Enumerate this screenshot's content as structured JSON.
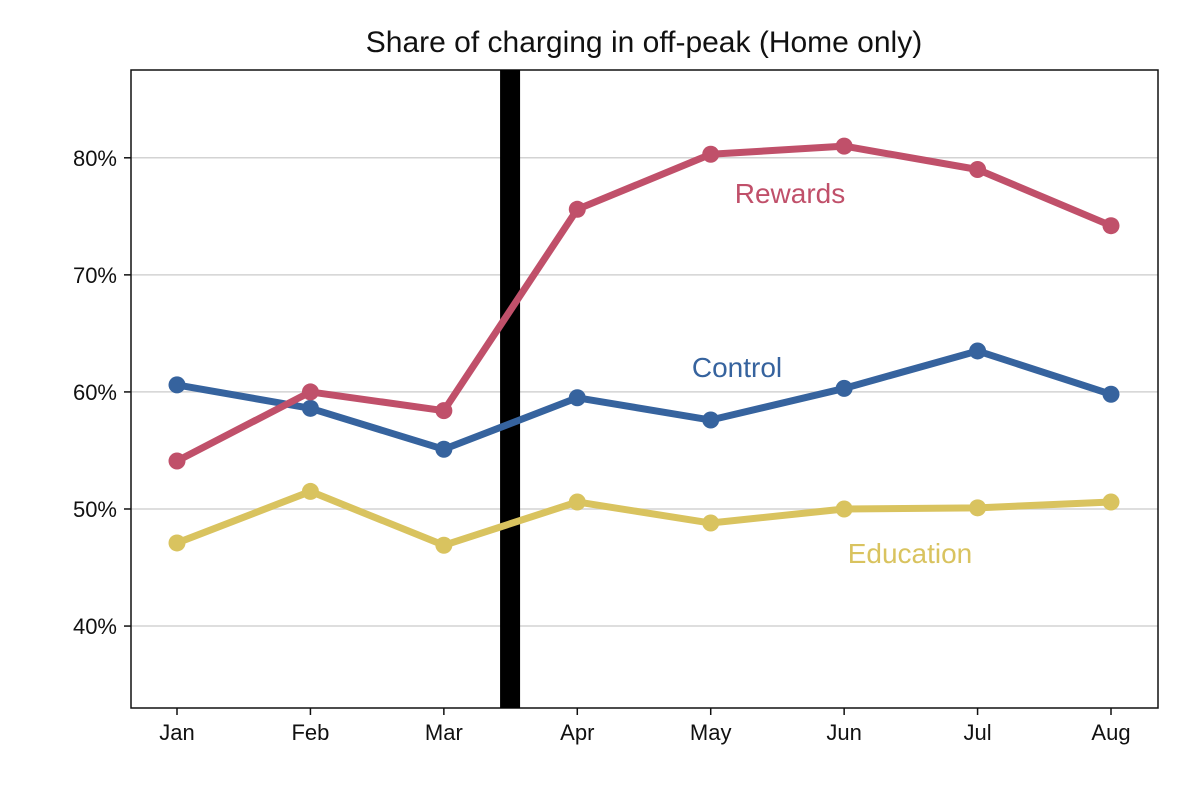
{
  "chart_data": {
    "type": "line",
    "title": "Share of charging in off-peak (Home only)",
    "xlabel": "",
    "ylabel": "",
    "categories": [
      "Jan",
      "Feb",
      "Mar",
      "Apr",
      "May",
      "Jun",
      "Jul",
      "Aug"
    ],
    "ylim": [
      0.33,
      0.875
    ],
    "yticks": [
      0.4,
      0.5,
      0.6,
      0.7,
      0.8
    ],
    "ytick_labels": [
      "40%",
      "50%",
      "60%",
      "70%",
      "80%"
    ],
    "grid": true,
    "legend": "inline labels",
    "event_marker": {
      "between": [
        "Mar",
        "Apr"
      ],
      "color": "#000000"
    },
    "series": [
      {
        "name": "Rewards",
        "color": "#c0506a",
        "values": [
          0.541,
          0.6,
          0.584,
          0.756,
          0.803,
          0.81,
          0.79,
          0.742
        ]
      },
      {
        "name": "Control",
        "color": "#36639e",
        "values": [
          0.606,
          0.586,
          0.551,
          0.595,
          0.576,
          0.603,
          0.635,
          0.598
        ]
      },
      {
        "name": "Education",
        "color": "#d9c35f",
        "values": [
          0.471,
          0.515,
          0.469,
          0.506,
          0.488,
          0.5,
          0.501,
          0.506
        ]
      }
    ]
  }
}
